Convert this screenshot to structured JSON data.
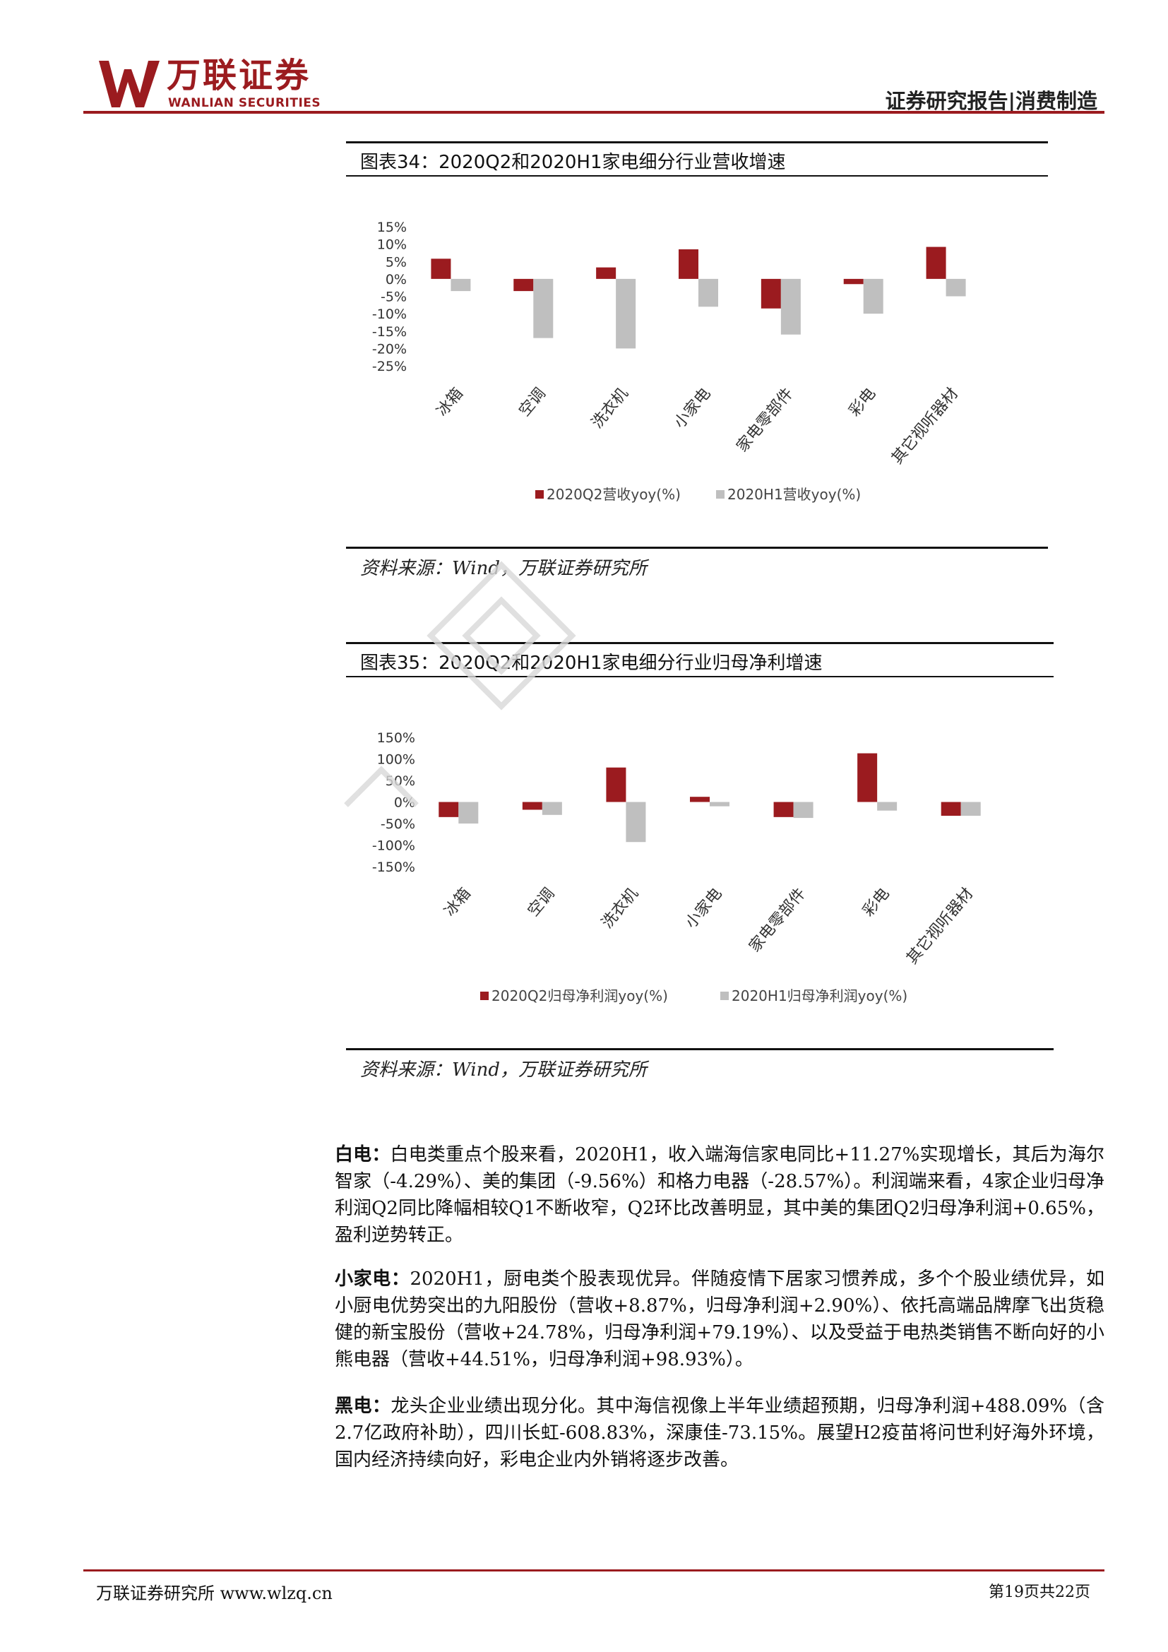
{
  "header": {
    "logo_cn": "万联证券",
    "logo_en": "WANLIAN SECURITIES",
    "report_type": "证券研究报告|消费制造"
  },
  "figure34": {
    "title": "图表34：2020Q2和2020H1家电细分行业营收增速",
    "source": "资料来源：Wind，万联证券研究所"
  },
  "figure35": {
    "title": "图表35：2020Q2和2020H1家电细分行业归母净利增速",
    "source": "资料来源：Wind，万联证券研究所"
  },
  "chart_data": [
    {
      "type": "bar",
      "categories": [
        "冰箱",
        "空调",
        "洗衣机",
        "小家电",
        "家电零部件",
        "彩电",
        "其它视听器材"
      ],
      "series": [
        {
          "name": "2020Q2营收yoy(%)",
          "color": "#9b1b1f",
          "values": [
            5.8,
            -3.5,
            3.3,
            8.5,
            -8.5,
            -1.5,
            9.2
          ]
        },
        {
          "name": "2020H1营收yoy(%)",
          "color": "#bfbfbf",
          "values": [
            -3.5,
            -17,
            -20,
            -8,
            -16,
            -10,
            -5
          ]
        }
      ],
      "yticks": [
        "15%",
        "10%",
        "5%",
        "0%",
        "-5%",
        "-10%",
        "-15%",
        "-20%",
        "-25%"
      ],
      "ylim": [
        -25,
        15
      ],
      "legend": "bottom"
    },
    {
      "type": "bar",
      "categories": [
        "冰箱",
        "空调",
        "洗衣机",
        "小家电",
        "家电零部件",
        "彩电",
        "其它视听器材"
      ],
      "series": [
        {
          "name": "2020Q2归母净利润yoy(%)",
          "color": "#9b1b1f",
          "values": [
            -35,
            -18,
            80,
            12,
            -35,
            113,
            -32
          ]
        },
        {
          "name": "2020H1归母净利润yoy(%)",
          "color": "#bfbfbf",
          "values": [
            -50,
            -30,
            -93,
            -10,
            -37,
            -20,
            -32
          ]
        }
      ],
      "yticks": [
        "150%",
        "100%",
        "50%",
        "0%",
        "-50%",
        "-100%",
        "-150%"
      ],
      "ylim": [
        -150,
        150
      ],
      "legend": "bottom"
    }
  ],
  "paragraphs": [
    {
      "lead": "白电：",
      "text": "白电类重点个股来看，2020H1，收入端海信家电同比+11.27%实现增长，其后为海尔智家（-4.29%）、美的集团（-9.56%）和格力电器（-28.57%）。利润端来看，4家企业归母净利润Q2同比降幅相较Q1不断收窄，Q2环比改善明显，其中美的集团Q2归母净利润+0.65%，盈利逆势转正。"
    },
    {
      "lead": "小家电：",
      "text": "2020H1，厨电类个股表现优异。伴随疫情下居家习惯养成，多个个股业绩优异，如小厨电优势突出的九阳股份（营收+8.87%，归母净利润+2.90%）、依托高端品牌摩飞出货稳健的新宝股份（营收+24.78%，归母净利润+79.19%）、以及受益于电热类销售不断向好的小熊电器（营收+44.51%，归母净利润+98.93%）。"
    },
    {
      "lead": "黑电：",
      "text": "龙头企业业绩出现分化。其中海信视像上半年业绩超预期，归母净利润+488.09%（含2.7亿政府补助），四川长虹-608.83%，深康佳-73.15%。展望H2疫苗将问世利好海外环境，国内经济持续向好，彩电企业内外销将逐步改善。"
    }
  ],
  "footer": {
    "left": "万联证券研究所 www.wlzq.cn",
    "right": "第19页共22页"
  }
}
